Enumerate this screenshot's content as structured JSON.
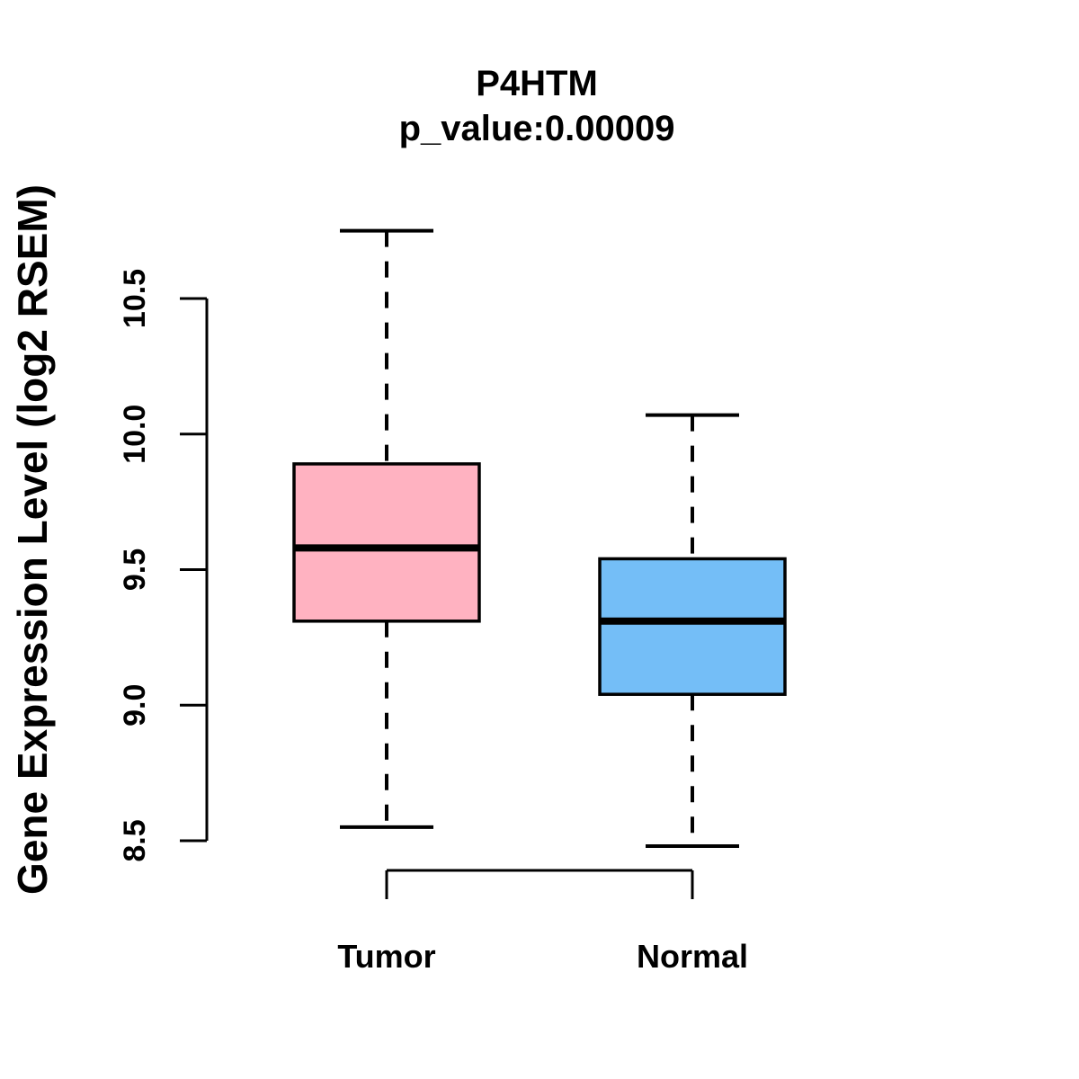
{
  "figure": {
    "title": "P4HTM",
    "subtitle": "p_value:0.00009"
  },
  "chart_data": {
    "type": "boxplot",
    "title": "P4HTM",
    "subtitle": "p_value:0.00009",
    "ylabel": "Gene Expression Level (log2 RSEM)",
    "xlabel": "",
    "categories": [
      "Tumor",
      "Normal"
    ],
    "yticks": [
      8.5,
      9.0,
      9.5,
      10.0,
      10.5
    ],
    "ylim": [
      8.4,
      10.8
    ],
    "grid": false,
    "legend": "none",
    "groups": [
      {
        "name": "Tumor",
        "fill_color": "#FFB2C1",
        "whisker_low": 8.55,
        "q1": 9.31,
        "median": 9.58,
        "q3": 9.89,
        "whisker_high": 10.75
      },
      {
        "name": "Normal",
        "fill_color": "#74BEF7",
        "whisker_low": 8.48,
        "q1": 9.04,
        "median": 9.31,
        "q3": 9.54,
        "whisker_high": 10.07
      }
    ],
    "colors": {
      "stroke": "#000000",
      "background": "#ffffff"
    }
  }
}
